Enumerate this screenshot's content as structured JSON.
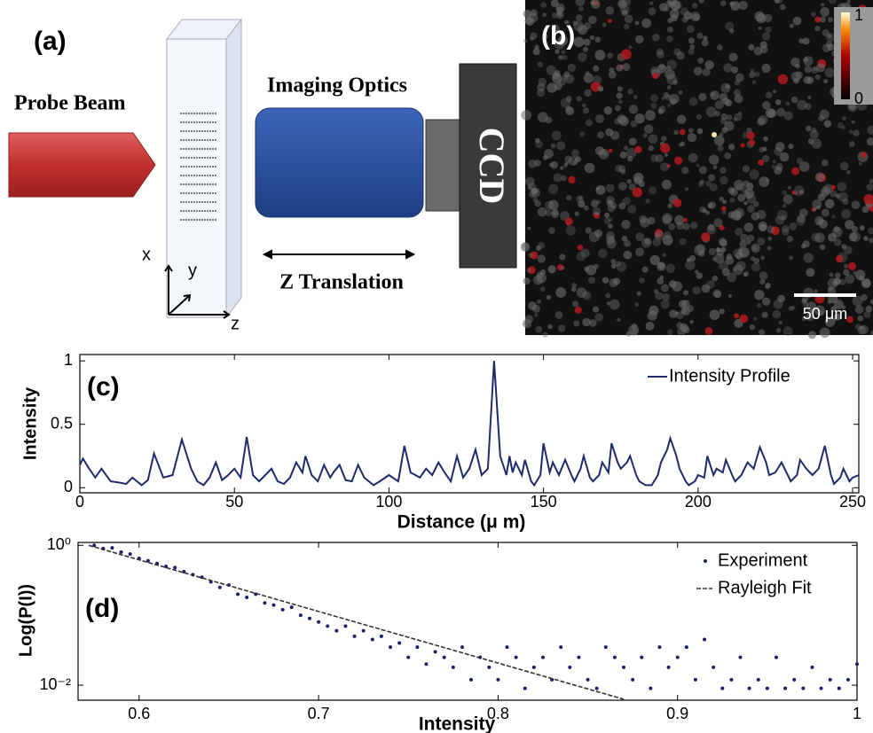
{
  "diagram": {
    "label": "(a)",
    "probe": "Probe Beam",
    "optics": "Imaging Optics",
    "translation": "Z Translation",
    "camera": "CCD",
    "axis_x": "x",
    "axis_y": "y",
    "axis_z": "z"
  },
  "image": {
    "label": "(b)",
    "scale_bar": "50 μm",
    "colorbar_max": "1",
    "colorbar_min": "0"
  },
  "chart_data": [
    {
      "type": "line",
      "annotation": "(c)",
      "x_label": "Distance (μ m)",
      "y_label": "Intensity",
      "x": [
        0,
        1,
        3,
        5,
        7,
        10,
        13,
        15,
        17,
        20,
        22,
        24,
        27,
        30,
        33,
        36,
        38,
        40,
        42,
        44,
        46,
        48,
        50,
        52,
        54,
        56,
        58,
        60,
        62,
        64,
        66,
        68,
        70,
        72,
        73,
        75,
        77,
        79,
        81,
        82,
        84,
        86,
        88,
        90,
        92,
        95,
        97,
        100,
        103,
        105,
        107,
        110,
        112,
        114,
        116,
        118,
        120,
        122,
        124,
        126,
        128,
        130,
        132,
        134,
        136,
        138,
        139,
        140,
        141,
        143,
        144,
        146,
        147,
        149,
        150,
        152,
        153,
        155,
        157,
        159,
        160,
        162,
        163,
        165,
        166,
        168,
        169,
        171,
        172,
        174,
        175,
        177,
        178,
        180,
        181,
        183,
        185,
        187,
        188,
        190,
        191,
        193,
        194,
        196,
        197,
        199,
        200,
        202,
        203,
        205,
        206,
        208,
        209,
        211,
        212,
        214,
        216,
        218,
        220,
        222,
        223,
        225,
        227,
        229,
        230,
        232,
        233,
        235,
        237,
        239,
        241,
        243,
        244,
        246,
        247,
        249,
        250,
        252
      ],
      "series": [
        {
          "name": "Intensity Profile",
          "color": "#1f2a6b",
          "values": [
            0.18,
            0.23,
            0.15,
            0.08,
            0.15,
            0.05,
            0.04,
            0.03,
            0.08,
            0.02,
            0.06,
            0.27,
            0.08,
            0.1,
            0.38,
            0.15,
            0.05,
            0.02,
            0.08,
            0.2,
            0.06,
            0.1,
            0.15,
            0.08,
            0.4,
            0.1,
            0.05,
            0.1,
            0.15,
            0.05,
            0.03,
            0.08,
            0.2,
            0.12,
            0.25,
            0.1,
            0.05,
            0.18,
            0.08,
            0.12,
            0.18,
            0.06,
            0.05,
            0.18,
            0.08,
            0.02,
            0.05,
            0.1,
            0.05,
            0.33,
            0.12,
            0.08,
            0.15,
            0.1,
            0.2,
            0.12,
            0.05,
            0.25,
            0.08,
            0.15,
            0.3,
            0.1,
            0.15,
            1.0,
            0.25,
            0.1,
            0.25,
            0.12,
            0.2,
            0.1,
            0.22,
            0.05,
            0.02,
            0.1,
            0.35,
            0.12,
            0.2,
            0.1,
            0.22,
            0.1,
            0.05,
            0.15,
            0.25,
            0.08,
            0.05,
            0.1,
            0.2,
            0.12,
            0.35,
            0.2,
            0.15,
            0.2,
            0.25,
            0.1,
            0.05,
            0.02,
            0.02,
            0.1,
            0.2,
            0.3,
            0.39,
            0.25,
            0.15,
            0.05,
            0.02,
            0.05,
            0.1,
            0.08,
            0.25,
            0.1,
            0.15,
            0.12,
            0.22,
            0.1,
            0.05,
            0.1,
            0.2,
            0.15,
            0.32,
            0.2,
            0.1,
            0.12,
            0.2,
            0.1,
            0.05,
            0.1,
            0.22,
            0.15,
            0.1,
            0.15,
            0.33,
            0.1,
            0.03,
            0.08,
            0.15,
            0.05,
            0.08,
            0.1
          ]
        }
      ],
      "xlim": [
        0,
        252
      ],
      "ylim": [
        -0.04,
        1.05
      ],
      "xticks": [
        0,
        50,
        100,
        150,
        200,
        250
      ],
      "yticks": [
        0,
        0.5,
        1
      ],
      "grid": false,
      "legend": "top-right"
    },
    {
      "type": "scatter",
      "annotation": "(d)",
      "x_label": "Intensity",
      "y_label": "Log(P(I))",
      "log_y": true,
      "series": [
        {
          "name": "Experiment",
          "color": "#1c1f6b",
          "x": [
            0.575,
            0.58,
            0.585,
            0.59,
            0.595,
            0.6,
            0.605,
            0.61,
            0.615,
            0.62,
            0.625,
            0.63,
            0.635,
            0.64,
            0.645,
            0.65,
            0.655,
            0.66,
            0.665,
            0.67,
            0.675,
            0.68,
            0.685,
            0.69,
            0.695,
            0.7,
            0.705,
            0.71,
            0.715,
            0.72,
            0.725,
            0.73,
            0.735,
            0.74,
            0.745,
            0.75,
            0.755,
            0.76,
            0.765,
            0.77,
            0.775,
            0.78,
            0.785,
            0.79,
            0.795,
            0.8,
            0.805,
            0.81,
            0.815,
            0.82,
            0.825,
            0.83,
            0.835,
            0.84,
            0.845,
            0.85,
            0.855,
            0.86,
            0.865,
            0.87,
            0.875,
            0.88,
            0.885,
            0.89,
            0.895,
            0.9,
            0.905,
            0.91,
            0.915,
            0.92,
            0.925,
            0.93,
            0.935,
            0.94,
            0.945,
            0.95,
            0.955,
            0.96,
            0.965,
            0.97,
            0.975,
            0.98,
            0.985,
            0.99,
            0.995,
            1.0
          ],
          "values": [
            1.0,
            0.9,
            0.92,
            0.8,
            0.75,
            0.65,
            0.6,
            0.55,
            0.5,
            0.48,
            0.42,
            0.38,
            0.35,
            0.3,
            0.25,
            0.27,
            0.2,
            0.18,
            0.2,
            0.15,
            0.14,
            0.12,
            0.13,
            0.1,
            0.09,
            0.08,
            0.07,
            0.06,
            0.07,
            0.05,
            0.06,
            0.045,
            0.05,
            0.035,
            0.04,
            0.025,
            0.035,
            0.02,
            0.03,
            0.025,
            0.018,
            0.035,
            0.012,
            0.025,
            0.018,
            0.012,
            0.035,
            0.025,
            0.009,
            0.018,
            0.025,
            0.012,
            0.035,
            0.018,
            0.025,
            0.012,
            0.009,
            0.035,
            0.025,
            0.018,
            0.012,
            0.025,
            0.009,
            0.035,
            0.018,
            0.025,
            0.035,
            0.012,
            0.045,
            0.018,
            0.009,
            0.012,
            0.025,
            0.009,
            0.012,
            0.009,
            0.025,
            0.009,
            0.012,
            0.009,
            0.018,
            0.009,
            0.012,
            0.009,
            0.012,
            0.02
          ]
        },
        {
          "name": "Rayleigh Fit",
          "color": "#333333",
          "dashed": true,
          "x": [
            0.572,
            0.87
          ],
          "values": [
            1.0,
            0.0063
          ]
        }
      ],
      "xlim": [
        0.566,
        1
      ],
      "ylim": [
        0.0061,
        1.1
      ],
      "xticks": [
        0.6,
        0.7,
        0.8,
        0.9,
        1
      ],
      "yticks": [
        {
          "value": 1,
          "label": "10⁰"
        },
        {
          "value": 0.01,
          "label": "10⁻²"
        }
      ],
      "grid": false,
      "legend": "right"
    }
  ]
}
